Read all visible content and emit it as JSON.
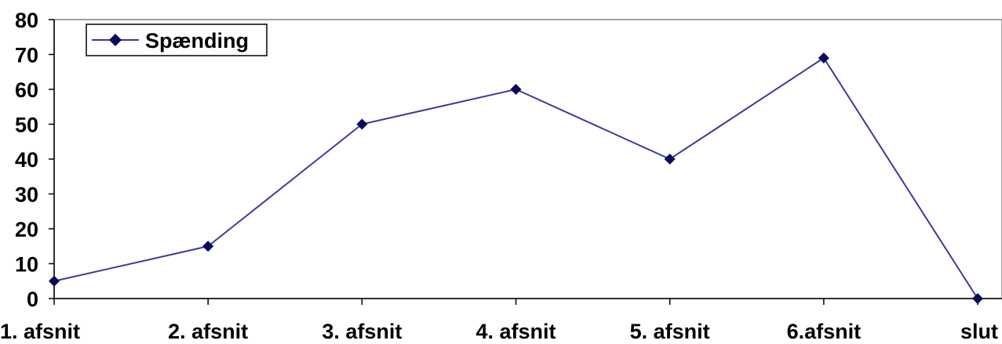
{
  "chart_data": {
    "type": "line",
    "categories": [
      "1. afsnit",
      "2. afsnit",
      "3. afsnit",
      "4. afsnit",
      "5. afsnit",
      "6.afsnit",
      "slut"
    ],
    "series": [
      {
        "name": "Spænding",
        "values": [
          5,
          15,
          50,
          60,
          40,
          69,
          0
        ],
        "color": "#3b3b9a",
        "marker_color": "#0a0a5a",
        "marker": "diamond"
      }
    ],
    "ylim": [
      0,
      80
    ],
    "yticks": [
      "0",
      "10",
      "20",
      "30",
      "40",
      "50",
      "60",
      "70",
      "80"
    ],
    "ytick_values": [
      0,
      10,
      20,
      30,
      40,
      50,
      60,
      70,
      80
    ],
    "grid": false,
    "legend_position": "top-left"
  }
}
